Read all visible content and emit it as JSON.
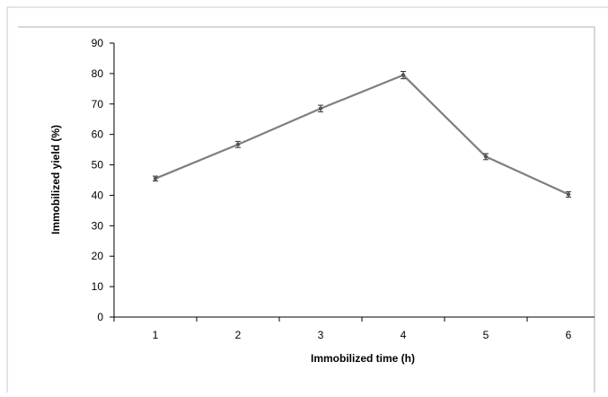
{
  "chart_data": {
    "type": "line",
    "title": "",
    "xlabel": "Immobilized  time (h)",
    "ylabel": "Immobilized  yield (%)",
    "categories": [
      "1",
      "2",
      "3",
      "4",
      "5",
      "6"
    ],
    "series": [
      {
        "values": [
          45.5,
          56.7,
          68.5,
          79.5,
          52.7,
          40.3
        ],
        "errors": [
          0.8,
          1.0,
          1.1,
          1.2,
          1.0,
          0.9
        ],
        "color": "#7f7f7f"
      }
    ],
    "ylim": [
      0,
      90
    ],
    "yticks": [
      0,
      10,
      20,
      30,
      40,
      50,
      60,
      70,
      80,
      90
    ],
    "grid": false,
    "legend": "none"
  }
}
